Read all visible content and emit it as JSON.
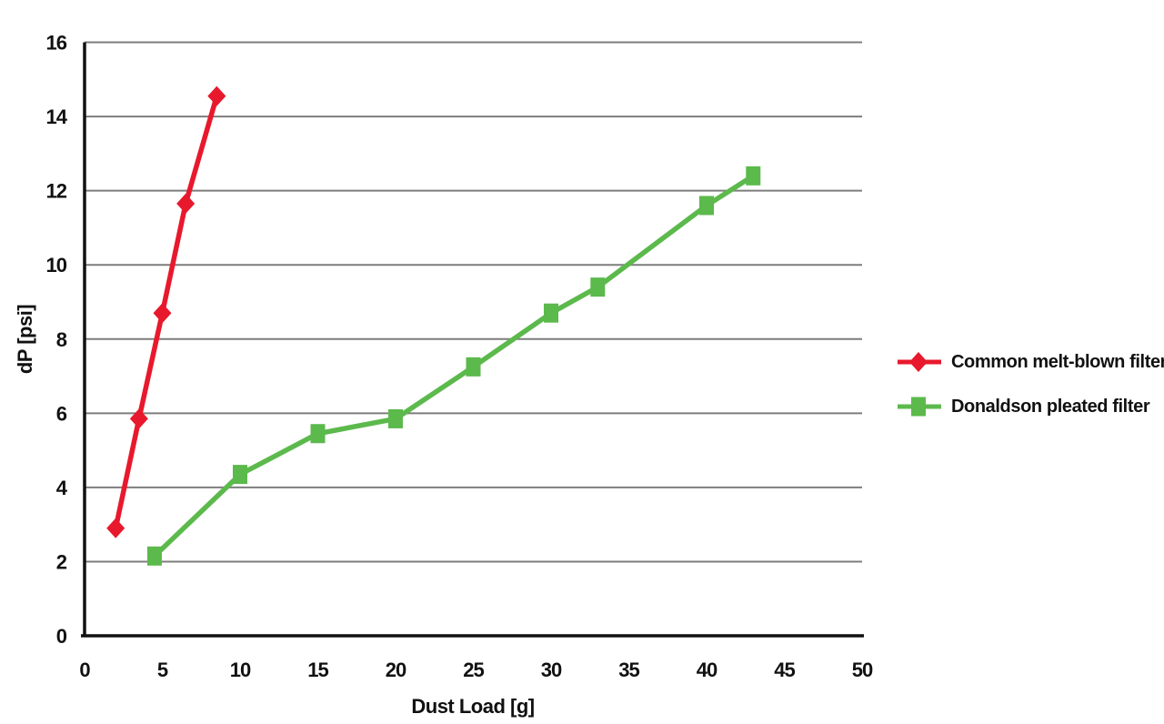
{
  "chart_data": {
    "type": "line",
    "title": "",
    "xlabel": "Dust Load [g]",
    "ylabel": "dP [psi]",
    "xlim": [
      0,
      50
    ],
    "ylim": [
      0,
      16
    ],
    "xticks": [
      0,
      5,
      10,
      15,
      20,
      25,
      30,
      35,
      40,
      45,
      50
    ],
    "yticks": [
      0,
      2,
      4,
      6,
      8,
      10,
      12,
      14,
      16
    ],
    "grid": "horizontal-only",
    "legend_position": "right-middle",
    "series": [
      {
        "name": "Common melt-blown filter",
        "color": "#e8192d",
        "marker": "diamond",
        "points": [
          [
            2,
            2.9
          ],
          [
            3.5,
            5.85
          ],
          [
            5,
            8.7
          ],
          [
            6.5,
            11.65
          ],
          [
            8.5,
            14.55
          ]
        ]
      },
      {
        "name": "Donaldson pleated filter",
        "color": "#5cb94c",
        "marker": "square",
        "points": [
          [
            4.5,
            2.15
          ],
          [
            10,
            4.35
          ],
          [
            15,
            5.45
          ],
          [
            20,
            5.85
          ],
          [
            25,
            7.25
          ],
          [
            30,
            8.7
          ],
          [
            33,
            9.4
          ],
          [
            40,
            11.6
          ],
          [
            43,
            12.4
          ]
        ]
      }
    ],
    "style": {
      "background": "#ffffff",
      "gridline_color": "#7d7d7d",
      "gridline_width": 2,
      "axis_color": "#111111",
      "axis_width": 3.5,
      "series_line_width": 5.5,
      "tick_font_size": 22
    }
  }
}
